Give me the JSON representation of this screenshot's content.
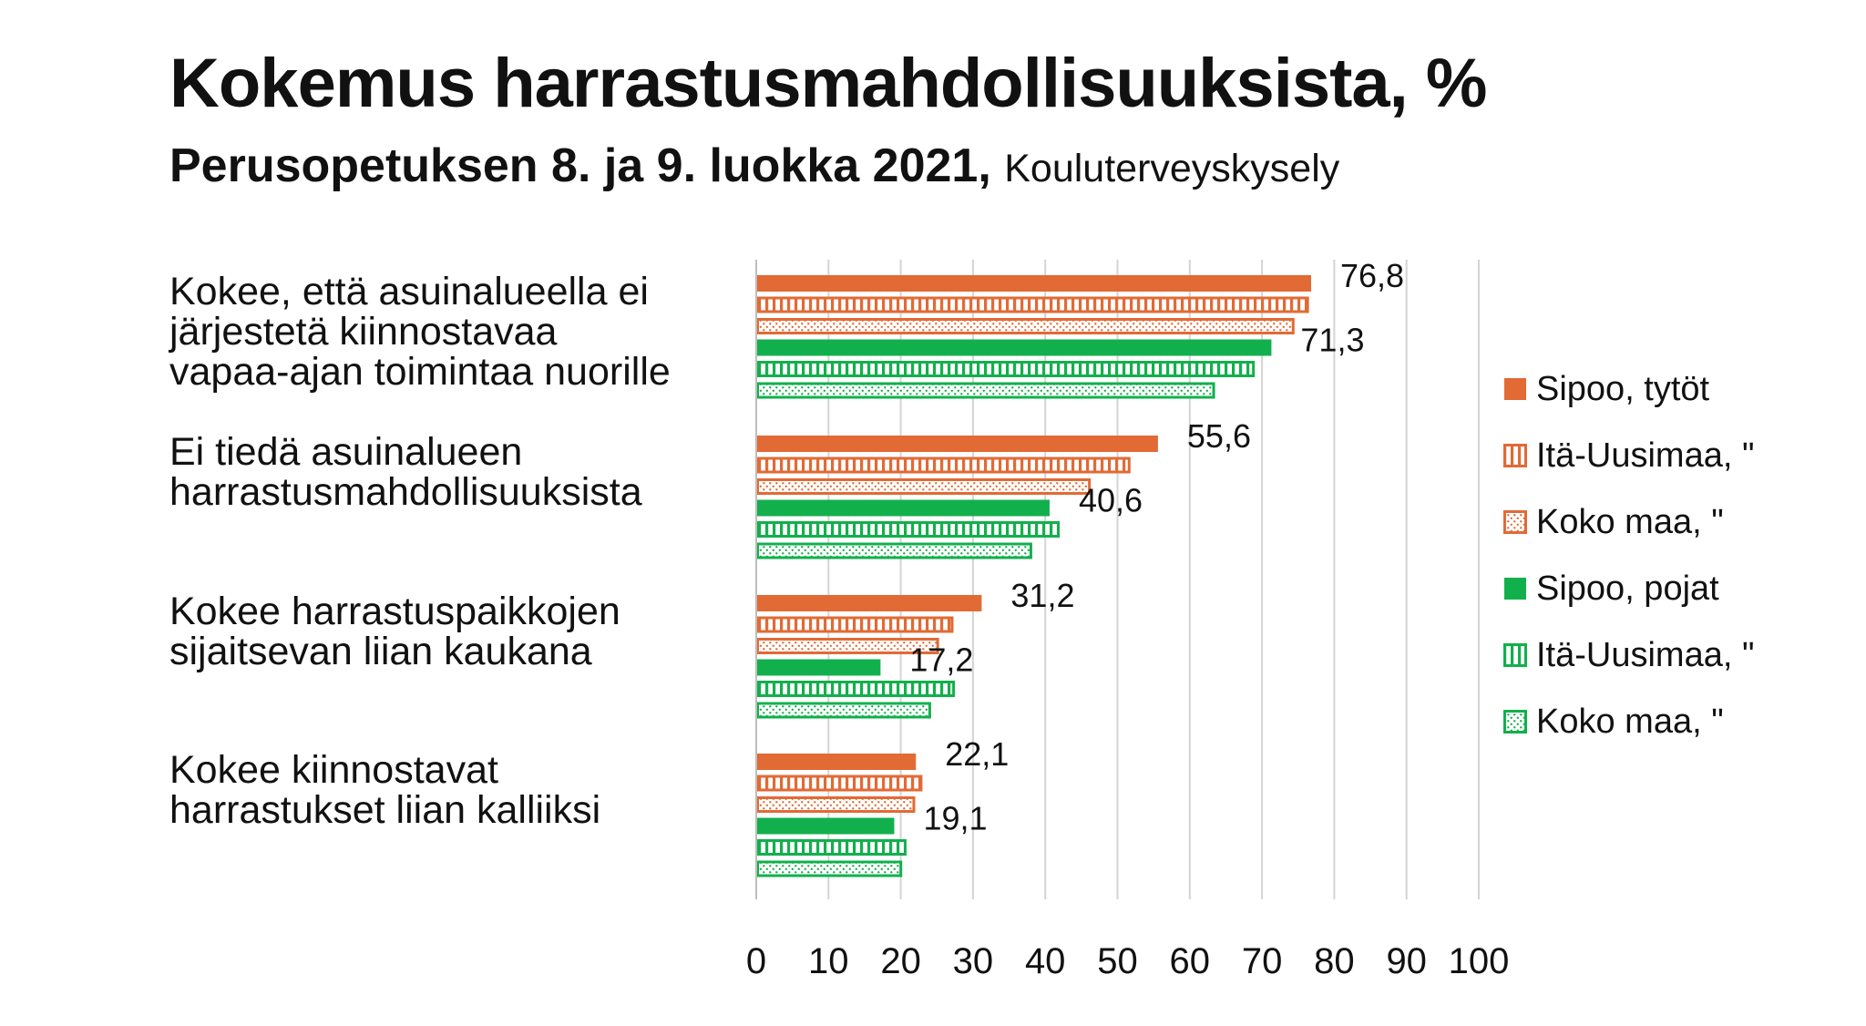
{
  "header": {
    "title": "Kokemus harrastusmahdollisuuksista, %",
    "subtitle_bold": "Perusopetuksen 8. ja 9. luokka 2021,",
    "subtitle_source": "Kouluterveyskysely"
  },
  "colors": {
    "orange": "#E26A35",
    "green": "#12B04C"
  },
  "chart_data": {
    "type": "bar",
    "orientation": "horizontal",
    "title": "Kokemus harrastusmahdollisuuksista, %",
    "subtitle": "Perusopetuksen 8. ja 9. luokka 2021, Kouluterveyskysely",
    "categories": [
      "Kokee, että asuinalueella ei\njärjestetä kiinnostavaa\nvapaa-ajan toimintaa nuorille",
      "Ei tiedä asuinalueen\nharrastusmahdollisuuksista",
      "Kokee harrastuspaikkojen\nsijaitsevan liian kaukana",
      "Kokee kiinnostavat\nharrastukset liian kalliiksi"
    ],
    "series": [
      {
        "name": "Sipoo, tytöt",
        "color": "orange",
        "pattern": "solid",
        "values": [
          76.8,
          55.6,
          31.2,
          22.1
        ]
      },
      {
        "name": "Itä-Uusimaa, \"",
        "color": "orange",
        "pattern": "stripes",
        "values": [
          76.5,
          51.8,
          27.3,
          23.0
        ]
      },
      {
        "name": "Koko maa, \"",
        "color": "orange",
        "pattern": "dots",
        "values": [
          74.5,
          46.3,
          25.3,
          22.0
        ]
      },
      {
        "name": "Sipoo, pojat",
        "color": "green",
        "pattern": "solid",
        "values": [
          71.3,
          40.6,
          17.2,
          19.1
        ]
      },
      {
        "name": "Itä-Uusimaa, \"",
        "color": "green",
        "pattern": "stripes",
        "values": [
          69.0,
          42.0,
          27.5,
          20.8
        ]
      },
      {
        "name": "Koko maa, \"",
        "color": "green",
        "pattern": "dots",
        "values": [
          63.5,
          38.2,
          24.2,
          20.2
        ]
      }
    ],
    "value_labels": [
      {
        "category": 0,
        "series": 0,
        "text": "76,8"
      },
      {
        "category": 0,
        "series": 3,
        "text": "71,3"
      },
      {
        "category": 1,
        "series": 0,
        "text": "55,6"
      },
      {
        "category": 1,
        "series": 3,
        "text": "40,6"
      },
      {
        "category": 2,
        "series": 0,
        "text": "31,2"
      },
      {
        "category": 2,
        "series": 3,
        "text": "17,2"
      },
      {
        "category": 3,
        "series": 0,
        "text": "22,1"
      },
      {
        "category": 3,
        "series": 3,
        "text": "19,1"
      }
    ],
    "xlim": [
      0,
      100
    ],
    "x_ticks": [
      "0",
      "10",
      "20",
      "30",
      "40",
      "50",
      "60",
      "70",
      "80",
      "90",
      "100"
    ],
    "grid": true,
    "legend_position": "right"
  }
}
